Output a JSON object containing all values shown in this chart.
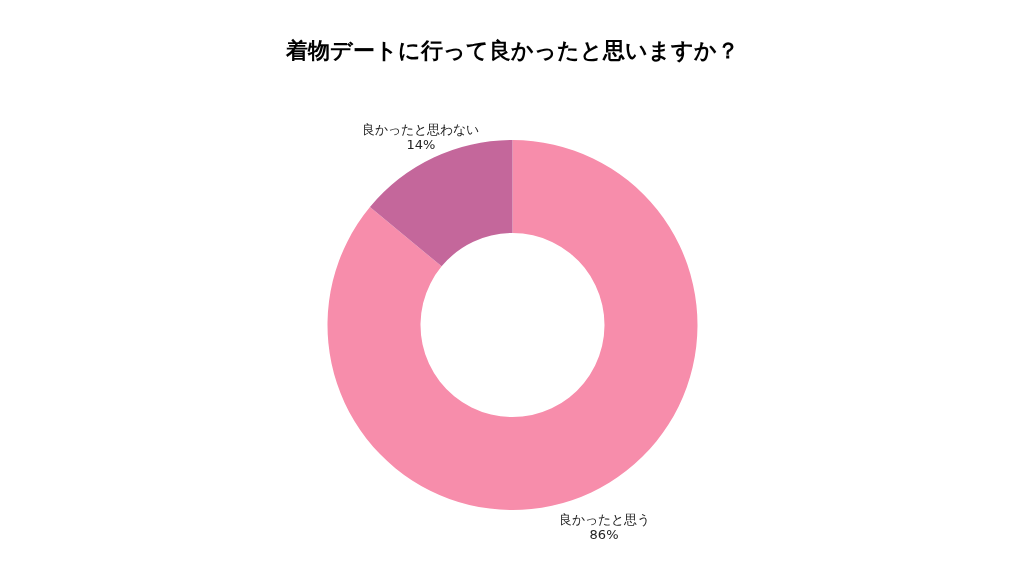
{
  "chart_data": {
    "type": "donut",
    "title": "着物デートに行って良かったと思いますか？",
    "categories": [
      "良かったと思う",
      "良かったと思わない"
    ],
    "values": [
      86,
      14
    ],
    "value_labels": [
      "86%",
      "14%"
    ],
    "colors": [
      "#f78dab",
      "#c4679b"
    ]
  }
}
